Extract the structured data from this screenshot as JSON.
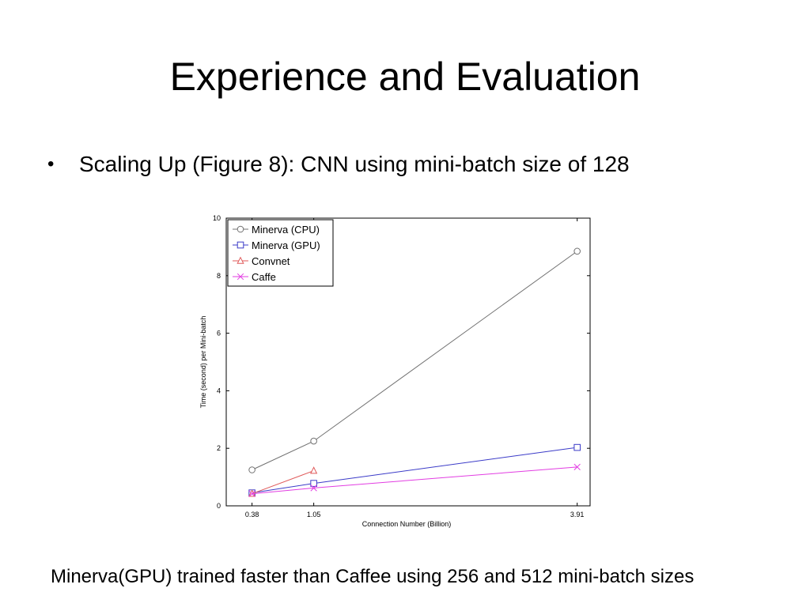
{
  "slide": {
    "title": "Experience and Evaluation",
    "bullet": "Scaling Up (Figure 8): CNN using mini-batch size of 128",
    "bullet_marker": "•",
    "footnote": "Minerva(GPU) trained faster than Caffee using 256 and 512 mini-batch sizes"
  },
  "chart_data": {
    "type": "line",
    "title": "",
    "xlabel": "Connection Number (Billion)",
    "ylabel": "Time (second) per Mini-batch",
    "x_ticks": [
      0.38,
      1.05,
      3.91
    ],
    "x_tick_labels": [
      "0.38",
      "1.05",
      "3.91"
    ],
    "y_ticks": [
      0,
      2,
      4,
      6,
      8,
      10
    ],
    "y_tick_labels": [
      "0",
      "2",
      "4",
      "6",
      "8",
      "10"
    ],
    "ylim": [
      0,
      10
    ],
    "grid": false,
    "legend_position": "top-left",
    "series": [
      {
        "name": "Minerva (CPU)",
        "color": "#707070",
        "marker": "circle",
        "x": [
          0.38,
          1.05,
          3.91
        ],
        "y": [
          1.25,
          2.25,
          8.85
        ]
      },
      {
        "name": "Minerva (GPU)",
        "color": "#3b3bc8",
        "marker": "square",
        "x": [
          0.38,
          1.05,
          3.91
        ],
        "y": [
          0.45,
          0.78,
          2.03
        ]
      },
      {
        "name": "Convnet",
        "color": "#e05a5a",
        "marker": "triangle",
        "x": [
          0.38,
          1.05
        ],
        "y": [
          0.42,
          1.22
        ]
      },
      {
        "name": "Caffe",
        "color": "#e23de2",
        "marker": "x",
        "x": [
          0.38,
          1.05,
          3.91
        ],
        "y": [
          0.42,
          0.62,
          1.35
        ]
      }
    ]
  }
}
